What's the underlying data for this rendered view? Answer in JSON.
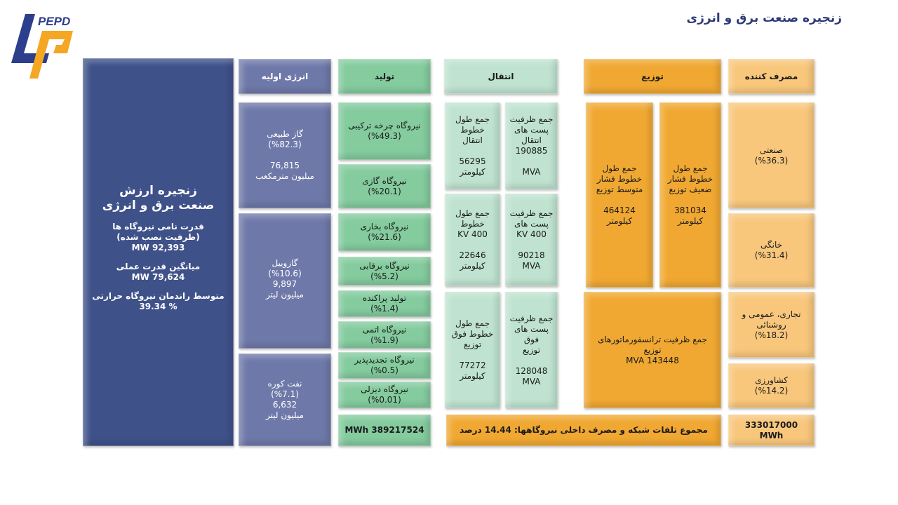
{
  "title": "زنجیره صنعت برق و انرژی",
  "logo": {
    "text": "PEPD",
    "colors": {
      "blue": "#2c3e8c",
      "orange": "#f5a623"
    }
  },
  "main": {
    "heading": "زنجیره ارزش\nصنعت برق و انرژی",
    "stats": [
      {
        "label": "قدرت نامی نیروگاه ها\n(ظرفیت نصب شده)",
        "value": "92,393 MW"
      },
      {
        "label": "میانگین قدرت عملی",
        "value": "79,624 MW"
      },
      {
        "label": "متوسط راندمان نیروگاه حرارتی",
        "value": "39.34 %"
      }
    ]
  },
  "headers": {
    "primary": "انرژی اولیه",
    "production": "تولید",
    "transmission": "انتقال",
    "distribution": "توزیع",
    "consumer": "مصرف کننده"
  },
  "primary": [
    "گاز طبیعی\n(%82.3)\n\n76,815\nمیلیون مترمکعب",
    "گازوییل\n(%10.6)\n9,897\nمیلیون لیتر",
    "نفت کوره\n(%7.1)\n6,632\nمیلیون لیتر"
  ],
  "production": [
    "نیروگاه چرخه ترکیبی\n(%49.3)",
    "نیروگاه گازی\n(%20.1)",
    "نیروگاه بخاری\n(%21.6)",
    "نیروگاه برقابی\n(%5.2)",
    "تولید پراکنده\n(%1.4)",
    "نیروگاه اتمی\n(%1.9)",
    "نیروگاه تجدیدپذیر\n(%0.5)",
    "نیروگاه دیزلی\n(%0.01)"
  ],
  "production_total": "389217524 MWh",
  "transmission": [
    "جمع طول\nخطوط\nانتقال\n\n56295\nکیلومتر",
    "جمع ظرفیت\nپست های\nانتقال\n190885\n\nMVA",
    "جمع طول\nخطوط\n400 KV\n\n22646\nکیلومتر",
    "جمع ظرفیت\nپست های\n400 KV\n\n90218\nMVA",
    "جمع طول\nخطوط فوق\nتوزیع\n\n77272\nکیلومتر",
    "جمع ظرفیت\nپست های فوق\nتوزیع\n\n128048\nMVA"
  ],
  "distribution": [
    "جمع طول\nخطوط فشار\nمتوسط توزیع\n\n464124\nکیلومتر",
    "جمع طول\nخطوط فشار\nضعیف توزیع\n\n381034\nکیلومتر",
    "جمع ظرفیت ترانسفورماتورهای\nتوزیع\n143448 MVA"
  ],
  "losses": "مجموع تلفات شبکه و مصرف داخلی نیروگاهها: 14.44 درصد",
  "consumer": [
    "صنعتی\n(%36.3)",
    "خانگی\n(%31.4)",
    "تجاری، عمومی و\nروشنائی\n(%18.2)",
    "کشاورزی\n(%14.2)"
  ],
  "consumer_total": "333017000\nMWh"
}
